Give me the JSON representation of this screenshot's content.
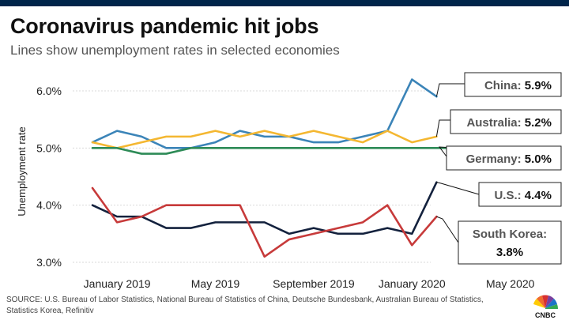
{
  "title": "Coronavirus pandemic hit jobs",
  "subtitle": "Lines show unemployment rates in selected economies",
  "source": "SOURCE: U.S. Bureau of Labor Statistics, National Bureau of Statistics of China, Deutsche Bundesbank, Australian Bureau of Statistics, Statistics Korea, Refinitiv",
  "logo_text": "CNBC",
  "chart_data": {
    "type": "line",
    "ylabel": "Unemployment rate",
    "xlabel": "",
    "ylim": [
      2.95,
      6.45
    ],
    "yticks": [
      3.0,
      4.0,
      5.0,
      6.0
    ],
    "ytick_labels": [
      "3.0%",
      "4.0%",
      "5.0%",
      "6.0%"
    ],
    "x": [
      "2018-12",
      "2019-01",
      "2019-02",
      "2019-03",
      "2019-04",
      "2019-05",
      "2019-06",
      "2019-07",
      "2019-08",
      "2019-09",
      "2019-10",
      "2019-11",
      "2019-12",
      "2020-01",
      "2020-02",
      "2020-03",
      "2020-04"
    ],
    "xtick_labels": [
      {
        "at": "2019-01",
        "label": "January 2019"
      },
      {
        "at": "2019-05",
        "label": "May 2019"
      },
      {
        "at": "2019-09",
        "label": "September 2019"
      },
      {
        "at": "2020-01",
        "label": "January 2020"
      },
      {
        "at": "2020-05",
        "label": "May 2020"
      }
    ],
    "grid": "horizontal",
    "series": [
      {
        "name": "China",
        "value_label": "5.9%",
        "color": "#3b84b8",
        "values": [
          5.1,
          5.3,
          5.2,
          5.0,
          5.0,
          5.1,
          5.3,
          5.2,
          5.2,
          5.1,
          5.1,
          5.2,
          5.3,
          6.2,
          5.9,
          null,
          null
        ]
      },
      {
        "name": "Australia",
        "value_label": "5.2%",
        "color": "#f4b731",
        "values": [
          5.1,
          5.0,
          5.1,
          5.2,
          5.2,
          5.3,
          5.2,
          5.3,
          5.2,
          5.3,
          5.2,
          5.1,
          5.3,
          5.1,
          5.2,
          null,
          null
        ]
      },
      {
        "name": "Germany",
        "value_label": "5.0%",
        "color": "#2e8b57",
        "values": [
          5.0,
          5.0,
          4.9,
          4.9,
          5.0,
          5.0,
          5.0,
          5.0,
          5.0,
          5.0,
          5.0,
          5.0,
          5.0,
          5.0,
          5.0,
          5.0,
          null
        ]
      },
      {
        "name": "U.S.",
        "value_label": "4.4%",
        "color": "#13213d",
        "values": [
          4.0,
          3.8,
          3.8,
          3.6,
          3.6,
          3.7,
          3.7,
          3.7,
          3.5,
          3.6,
          3.5,
          3.5,
          3.6,
          3.5,
          4.4,
          null,
          null
        ]
      },
      {
        "name": "South Korea",
        "value_label": "3.8%",
        "color": "#c73a3a",
        "values": [
          4.3,
          3.7,
          3.8,
          4.0,
          4.0,
          4.0,
          4.0,
          3.1,
          3.4,
          3.5,
          3.6,
          3.7,
          4.0,
          3.3,
          3.8,
          null,
          null
        ]
      }
    ]
  }
}
